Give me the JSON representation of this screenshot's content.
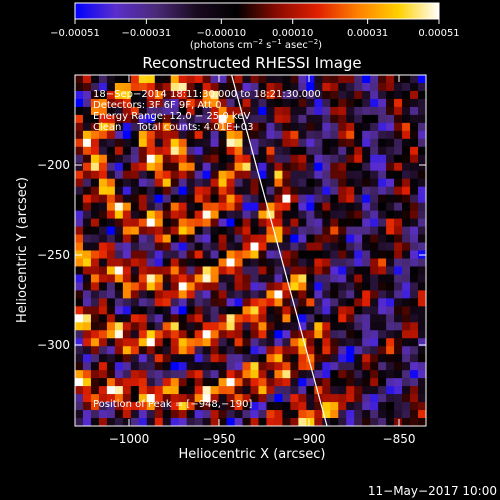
{
  "chart_data": {
    "type": "heatmap",
    "title": "Reconstructed RHESSI Image",
    "xlabel": "Heliocentric X (arcsec)",
    "ylabel": "Heliocentric Y (arcsec)",
    "xlim": [
      -1030,
      -835
    ],
    "ylim": [
      -345,
      -150
    ],
    "x_ticks": [
      -1000,
      -950,
      -900,
      -850
    ],
    "x_tick_labels": [
      "−1000",
      "−950",
      "−900",
      "−850"
    ],
    "y_ticks": [
      -200,
      -250,
      -300
    ],
    "y_tick_labels": [
      "−200",
      "−250",
      "−300"
    ],
    "colorbar": {
      "min": -0.00051,
      "max": 0.00051,
      "ticks": [
        -0.00051,
        -0.00031,
        -0.0001,
        0.0001,
        0.00031,
        0.00051
      ],
      "tick_labels": [
        "−0.00051",
        "−0.00031",
        "−0.00010",
        "0.00010",
        "0.00031",
        "0.00051"
      ],
      "unit_label": "(photons cm",
      "unit_exp1": "−2",
      "unit_mid": " s",
      "unit_exp2": "−1",
      "unit_mid2": " asec",
      "unit_exp3": "−2",
      "unit_close": ")",
      "colors": [
        "#0000ff",
        "#5a2ecc",
        "#4a2a78",
        "#1a0a20",
        "#000000",
        "#8a0a00",
        "#e02000",
        "#ff8000",
        "#ffd000",
        "#ffffff"
      ]
    },
    "limb_line": {
      "x_top": -943,
      "y_top": -150,
      "x_bottom": -890,
      "y_bottom": -345
    },
    "annotations": {
      "line1": "18−Sep−2014 18:11:30.000 to 18:21:30.000",
      "line2": "Detectors: 3F 6F 9F, Att 0",
      "line3": "Energy Range: 12.0 − 25.0 keV",
      "line4": "Clean     Total counts: 4.01E+03",
      "peak": "Position of Peak = [−948,−190]"
    },
    "peak_position": [
      -948,
      -190
    ]
  },
  "footer": {
    "timestamp": "11−May−2017 10:00"
  }
}
